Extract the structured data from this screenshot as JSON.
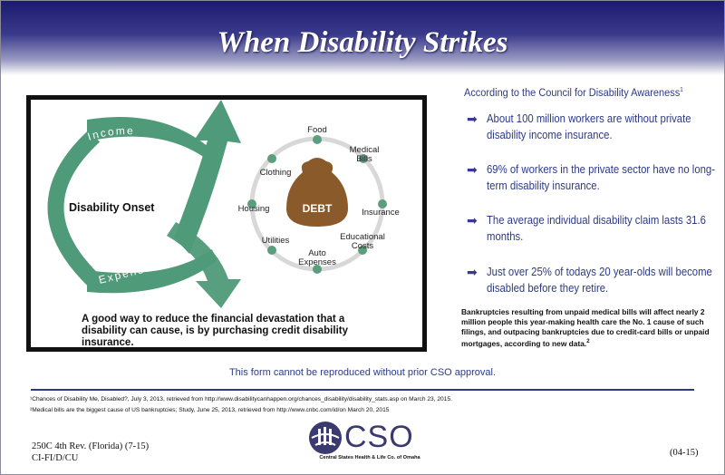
{
  "header": {
    "title": "When Disability Strikes"
  },
  "illustration": {
    "onset_label": "Disability Onset",
    "income_label": "Income",
    "expenses_label": "Expenses",
    "center_label": "DEBT",
    "items": [
      "Food",
      "Medical",
      "Bills",
      "Insurance",
      "Educational",
      "Costs",
      "Auto",
      "Expenses",
      "Utilities",
      "Housing",
      "Clothing"
    ],
    "caption": "A good way to reduce the financial devastation that a disability can cause, is by purchasing credit disability insurance."
  },
  "facts": {
    "intro": "According to the Council for Disability Awareness",
    "intro_ref": "1",
    "bullets": [
      "About 100 million workers are without private disability income insurance.",
      "69% of workers in the private sector have no long-term disability insurance.",
      "The average individual disability claim lasts 31.6 months.",
      "Just over 25% of todays 20 year-olds will become disabled before they retire."
    ],
    "bankruptcy": "Bankruptcies resulting from unpaid medical bills will affect nearly 2 million people this year-making health care the No. 1 cause of such filings, and outpacing bankruptcies due to credit-card bills or unpaid mortgages, according to new data.",
    "bankruptcy_ref": "2"
  },
  "notice": "This form cannot be reproduced without prior CSO approval.",
  "footnotes": [
    "¹Chances of Disability Me, Disabled?, July 3, 2013, retrieved from http://www.disabilitycanhappen.org/chances_disability/disability_stats.asp on March 23, 2015.",
    "²Medical bills are the biggest cause of US bankruptcies; Study, June 25, 2013, retrieved from http://www.cnbc.com/id/on March 20, 2015"
  ],
  "form": {
    "line1": "250C 4th Rev. (Florida) (7-15)",
    "line2": "CI-FI/D/CU",
    "code": "(04-15)"
  },
  "logo": {
    "text": "CSO",
    "subtitle": "Central States Health & Life Co. of Omaha"
  },
  "colors": {
    "banner": "#1c1a70",
    "accent": "#2c3a86",
    "arrow_green": "#4f9a78",
    "bag": "#8a5a2a"
  }
}
